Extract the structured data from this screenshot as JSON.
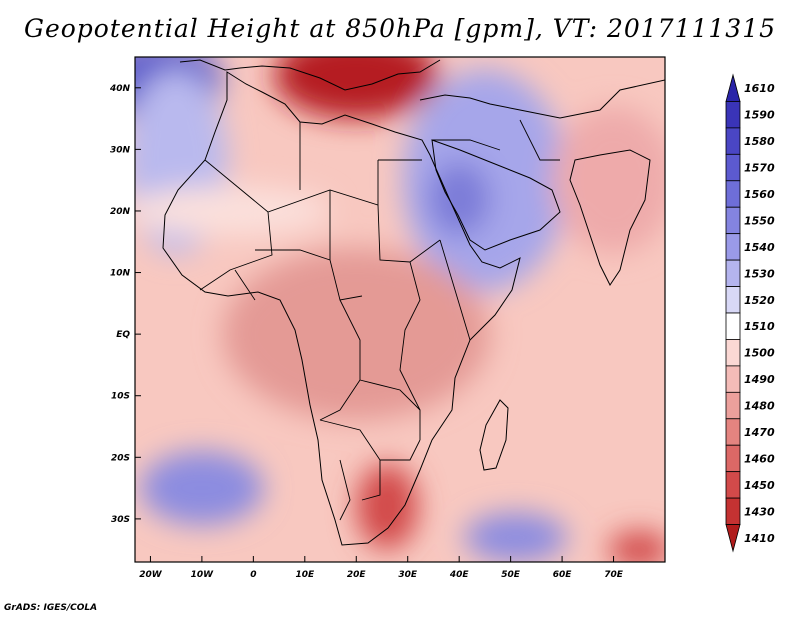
{
  "title": "Geopotential Height at 850hPa [gpm], VT: 2017111315",
  "credit": "GrADS: IGES/COLA",
  "map": {
    "lon_range": [
      -23,
      80
    ],
    "lat_range": [
      -37,
      45
    ],
    "lat_labels": [
      {
        "lat": 40,
        "text": "40N"
      },
      {
        "lat": 30,
        "text": "30N"
      },
      {
        "lat": 20,
        "text": "20N"
      },
      {
        "lat": 10,
        "text": "10N"
      },
      {
        "lat": 0,
        "text": "EQ"
      },
      {
        "lat": -10,
        "text": "10S"
      },
      {
        "lat": -20,
        "text": "20S"
      },
      {
        "lat": -30,
        "text": "30S"
      }
    ],
    "lon_labels": [
      {
        "lon": -20,
        "text": "20W"
      },
      {
        "lon": -10,
        "text": "10W"
      },
      {
        "lon": 0,
        "text": "0"
      },
      {
        "lon": 10,
        "text": "10E"
      },
      {
        "lon": 20,
        "text": "20E"
      },
      {
        "lon": 30,
        "text": "30E"
      },
      {
        "lon": 40,
        "text": "40E"
      },
      {
        "lon": 50,
        "text": "50E"
      },
      {
        "lon": 60,
        "text": "60E"
      },
      {
        "lon": 70,
        "text": "70E"
      }
    ],
    "background_color": "#f8c8c0",
    "height_fields": [
      {
        "lon": 20,
        "lat": 42,
        "rx": 16,
        "ry": 7,
        "color": "#b51f24"
      },
      {
        "lon": -18,
        "lat": 41,
        "rx": 12,
        "ry": 7,
        "color": "#6060cc"
      },
      {
        "lon": 45,
        "lat": 25,
        "rx": 16,
        "ry": 18,
        "color": "#a6a6ea"
      },
      {
        "lon": 40,
        "lat": 22,
        "rx": 6,
        "ry": 6,
        "color": "#7b7bd8"
      },
      {
        "lon": -15,
        "lat": 28,
        "rx": 10,
        "ry": 15,
        "color": "#b9b9ee"
      },
      {
        "lon": 20,
        "lat": 0,
        "rx": 26,
        "ry": 14,
        "color": "#e49a95"
      },
      {
        "lon": 26,
        "lat": -28,
        "rx": 6,
        "ry": 7,
        "color": "#d24a4a"
      },
      {
        "lon": -10,
        "lat": -25,
        "rx": 12,
        "ry": 6,
        "color": "#8c8ce0"
      },
      {
        "lon": 51,
        "lat": -33,
        "rx": 10,
        "ry": 4,
        "color": "#8c8ce0"
      },
      {
        "lon": 75,
        "lat": -35,
        "rx": 6,
        "ry": 3,
        "color": "#d24a4a"
      },
      {
        "lon": 70,
        "lat": 25,
        "rx": 12,
        "ry": 12,
        "color": "#eeaaaa"
      },
      {
        "lon": -5,
        "lat": 20,
        "rx": 20,
        "ry": 4,
        "color": "#fbe0dc"
      }
    ],
    "colorbar": {
      "levels": [
        "1610",
        "1590",
        "1580",
        "1570",
        "1560",
        "1550",
        "1540",
        "1530",
        "1520",
        "1510",
        "1500",
        "1490",
        "1480",
        "1470",
        "1460",
        "1450",
        "1430",
        "1410"
      ],
      "colors": [
        "#2a24a8",
        "#3a34b8",
        "#4a46c4",
        "#5c5ad0",
        "#6e6ed8",
        "#8484e0",
        "#9a9ae8",
        "#b4b4ee",
        "#d8d8f6",
        "#ffffff",
        "#fbd8d4",
        "#f4bcb8",
        "#eca09c",
        "#e48480",
        "#dc6866",
        "#d24a4a",
        "#c43232",
        "#b01c1c"
      ]
    }
  }
}
